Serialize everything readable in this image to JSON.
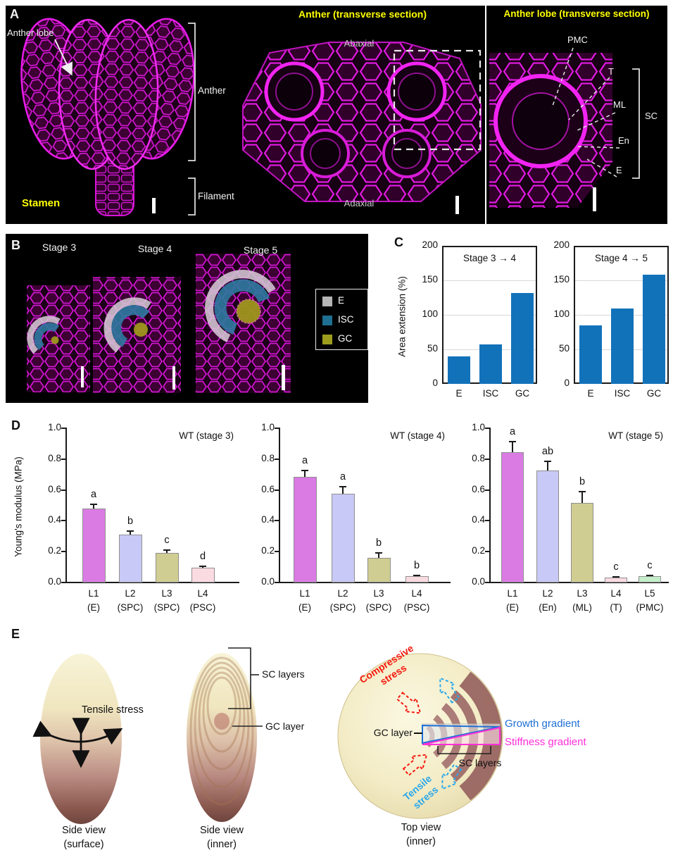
{
  "colors": {
    "microscopy_magenta": "#e01ae0",
    "bar_blue": "#1272b9",
    "stress_red": "#f5190f",
    "stress_blue": "#29a8ec",
    "growth_blue": "#1d6fd6",
    "stiffness_magenta": "#ff2fd8",
    "title_yellow": "#ffff00"
  },
  "panel_a": {
    "label": "A",
    "stamen_title": "Stamen",
    "anther_lobe": "Anther lobe",
    "anther": "Anther",
    "filament": "Filament",
    "mid_title": "Anther (transverse section)",
    "abaxial": "Abaxial",
    "adaxial": "Adaxial",
    "right_title": "Anther lobe (transverse section)",
    "pmc": "PMC",
    "t": "T",
    "ml": "ML",
    "en": "En",
    "e": "E",
    "sc": "SC"
  },
  "panel_b": {
    "label": "B",
    "stages": [
      "Stage 3",
      "Stage 4",
      "Stage 5"
    ],
    "legend": [
      {
        "label": "E",
        "color": "#b5b5b5"
      },
      {
        "label": "ISC",
        "color": "#1e6f91"
      },
      {
        "label": "GC",
        "color": "#9c9c1d"
      }
    ]
  },
  "panel_c": {
    "label": "C",
    "ylabel": "Area extension (%)",
    "yticks": [
      "200",
      "150",
      "100",
      "50",
      "0"
    ],
    "ylim": [
      0,
      200
    ],
    "bar_color": "#1272b9",
    "charts": [
      {
        "title": "Stage 3 → 4",
        "categories": [
          "E",
          "ISC",
          "GC"
        ],
        "values": [
          40,
          57,
          132
        ]
      },
      {
        "title": "Stage 4 → 5",
        "categories": [
          "E",
          "ISC",
          "GC"
        ],
        "values": [
          85,
          109,
          158
        ]
      }
    ]
  },
  "panel_d": {
    "label": "D",
    "ylabel": "Young's modulus (MPa)",
    "yticks": [
      "1.0",
      "0.8",
      "0.6",
      "0.4",
      "0.2",
      "0.0"
    ],
    "ylim": [
      0,
      1
    ],
    "charts": [
      {
        "title": "WT (stage 3)",
        "categories": [
          "L1",
          "L2",
          "L3",
          "L4"
        ],
        "sublabels": [
          "(E)",
          "(SPC)",
          "(SPC)",
          "(PSC)"
        ],
        "values": [
          0.48,
          0.31,
          0.19,
          0.095
        ],
        "errors": [
          0.025,
          0.025,
          0.02,
          0.012
        ],
        "letters": [
          "a",
          "b",
          "c",
          "d"
        ],
        "colors": [
          "#da7be4",
          "#c9c9f7",
          "#d0cd92",
          "#fbdbe2"
        ]
      },
      {
        "title": "WT (stage 4)",
        "categories": [
          "L1",
          "L2",
          "L3",
          "L4"
        ],
        "sublabels": [
          "(E)",
          "(SPC)",
          "(SPC)",
          "(PSC)"
        ],
        "values": [
          0.685,
          0.575,
          0.16,
          0.04
        ],
        "errors": [
          0.04,
          0.045,
          0.03,
          0.006
        ],
        "letters": [
          "a",
          "a",
          "b",
          "b"
        ],
        "colors": [
          "#da7be4",
          "#c9c9f7",
          "#d0cd92",
          "#fbdbe2"
        ]
      },
      {
        "title": "WT (stage 5)",
        "categories": [
          "L1",
          "L2",
          "L3",
          "L4",
          "L5"
        ],
        "sublabels": [
          "(E)",
          "(En)",
          "(ML)",
          "(T)",
          "(PMC)"
        ],
        "values": [
          0.845,
          0.725,
          0.515,
          0.032,
          0.04
        ],
        "errors": [
          0.07,
          0.06,
          0.075,
          0.006,
          0.004
        ],
        "letters": [
          "a",
          "ab",
          "b",
          "c",
          "c"
        ],
        "colors": [
          "#da7be4",
          "#c9c9f7",
          "#d0cd92",
          "#fbdbe2",
          "#c4efc9"
        ]
      }
    ]
  },
  "panel_e": {
    "label": "E",
    "tensile_stress": "Tensile stress",
    "sc_layers_side": "SC layers",
    "gc_layer_side": "GC layer",
    "captions": [
      [
        "Side view",
        "(surface)"
      ],
      [
        "Side view",
        "(inner)"
      ],
      [
        "Top view",
        "(inner)"
      ]
    ],
    "compressive": [
      "Compressive",
      "stress"
    ],
    "tensile": [
      "Tensile",
      "stress"
    ],
    "gc_layer_top": "GC layer",
    "sc_layers_top": "SC layers",
    "growth_gradient": "Growth gradient",
    "stiffness_gradient": "Stiffness gradient"
  },
  "chart_data": [
    {
      "type": "bar",
      "title": "Stage 3 → 4",
      "ylabel": "Area extension (%)",
      "ylim": [
        0,
        200
      ],
      "categories": [
        "E",
        "ISC",
        "GC"
      ],
      "values": [
        40,
        57,
        132
      ],
      "grid": true,
      "legend_position": "none"
    },
    {
      "type": "bar",
      "title": "Stage 4 → 5",
      "ylabel": "Area extension (%)",
      "ylim": [
        0,
        200
      ],
      "categories": [
        "E",
        "ISC",
        "GC"
      ],
      "values": [
        85,
        109,
        158
      ],
      "grid": true,
      "legend_position": "none"
    },
    {
      "type": "bar",
      "title": "WT (stage 3)",
      "ylabel": "Young's modulus (MPa)",
      "ylim": [
        0,
        1
      ],
      "categories": [
        "L1 (E)",
        "L2 (SPC)",
        "L3 (SPC)",
        "L4 (PSC)"
      ],
      "values": [
        0.48,
        0.31,
        0.19,
        0.095
      ],
      "errors": [
        0.025,
        0.025,
        0.02,
        0.012
      ],
      "annotations": [
        "a",
        "b",
        "c",
        "d"
      ],
      "grid": false,
      "legend_position": "none"
    },
    {
      "type": "bar",
      "title": "WT (stage 4)",
      "ylabel": "Young's modulus (MPa)",
      "ylim": [
        0,
        1
      ],
      "categories": [
        "L1 (E)",
        "L2 (SPC)",
        "L3 (SPC)",
        "L4 (PSC)"
      ],
      "values": [
        0.685,
        0.575,
        0.16,
        0.04
      ],
      "errors": [
        0.04,
        0.045,
        0.03,
        0.006
      ],
      "annotations": [
        "a",
        "a",
        "b",
        "b"
      ],
      "grid": false,
      "legend_position": "none"
    },
    {
      "type": "bar",
      "title": "WT (stage 5)",
      "ylabel": "Young's modulus (MPa)",
      "ylim": [
        0,
        1
      ],
      "categories": [
        "L1 (E)",
        "L2 (En)",
        "L3 (ML)",
        "L4 (T)",
        "L5 (PMC)"
      ],
      "values": [
        0.845,
        0.725,
        0.515,
        0.032,
        0.04
      ],
      "errors": [
        0.07,
        0.06,
        0.075,
        0.006,
        0.004
      ],
      "annotations": [
        "a",
        "ab",
        "b",
        "c",
        "c"
      ],
      "grid": false,
      "legend_position": "none"
    }
  ]
}
